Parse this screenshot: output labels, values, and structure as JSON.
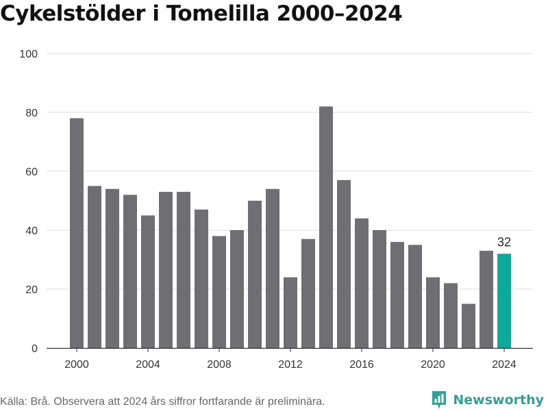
{
  "title": "Cykelstölder i Tomelilla 2000–2024",
  "source": "Källa: Brå. Observera att 2024 års siffror fortfarande är preliminära.",
  "brand": {
    "name": "Newsworthy",
    "icon": "bar-chart-pin-icon"
  },
  "colors": {
    "bar": "#6e6e73",
    "highlight": "#10a89a",
    "grid": "#dddddd",
    "axis": "#333333"
  },
  "chart_data": {
    "type": "bar",
    "title": "Cykelstölder i Tomelilla 2000–2024",
    "x": [
      2000,
      2001,
      2002,
      2003,
      2004,
      2005,
      2006,
      2007,
      2008,
      2009,
      2010,
      2011,
      2012,
      2013,
      2014,
      2015,
      2016,
      2017,
      2018,
      2019,
      2020,
      2021,
      2022,
      2023,
      2024
    ],
    "values": [
      78,
      55,
      54,
      52,
      45,
      53,
      53,
      47,
      38,
      40,
      50,
      54,
      24,
      37,
      82,
      57,
      44,
      40,
      36,
      35,
      24,
      22,
      15,
      33,
      32
    ],
    "ylim": [
      0,
      100
    ],
    "yticks": [
      0,
      20,
      40,
      60,
      80,
      100
    ],
    "xticks": [
      2000,
      2004,
      2008,
      2012,
      2016,
      2020,
      2024
    ],
    "highlight": {
      "x": 2024,
      "label": "32"
    },
    "grid": true,
    "legend": "none"
  }
}
